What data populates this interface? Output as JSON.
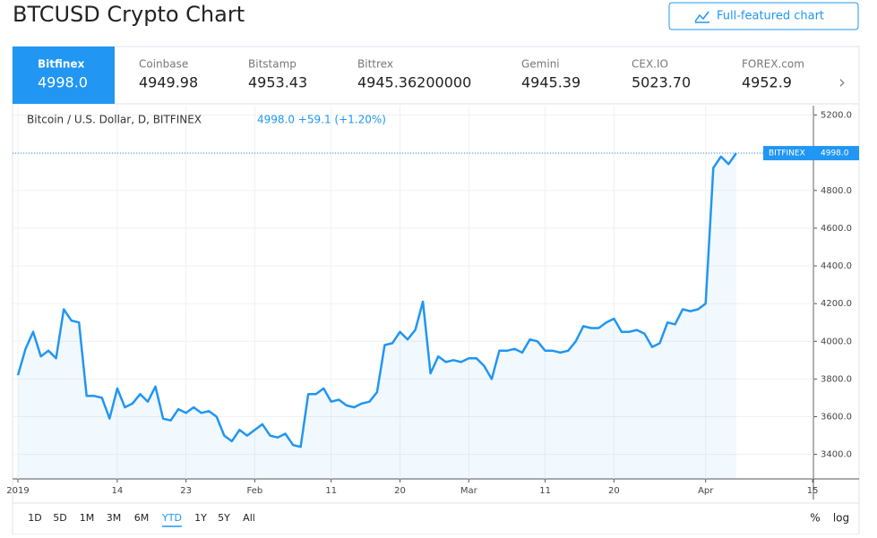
{
  "header": {
    "title": "BTCUSD Crypto Chart",
    "button": "Full-featured chart"
  },
  "tabs": [
    {
      "name": "Bitfinex",
      "price": "4998.0"
    },
    {
      "name": "Coinbase",
      "price": "4949.98"
    },
    {
      "name": "Bitstamp",
      "price": "4953.43"
    },
    {
      "name": "Bittrex",
      "price": "4945.36200000"
    },
    {
      "name": "Gemini",
      "price": "4945.39"
    },
    {
      "name": "CEX.IO",
      "price": "5023.70"
    },
    {
      "name": "FOREX.com",
      "price": "4952.9"
    }
  ],
  "chart_data": {
    "type": "line",
    "title": "Bitcoin / U.S. Dollar, D, BITFINEX",
    "quote": "4998.0  +59.1 (+1.20%)",
    "color": "#2196f3",
    "x": [
      1,
      2,
      3,
      4,
      5,
      6,
      7,
      8,
      9,
      10,
      11,
      12,
      13,
      14,
      15,
      16,
      17,
      18,
      19,
      20,
      21,
      22,
      23,
      24,
      25,
      26,
      27,
      28,
      29,
      30,
      31,
      32,
      33,
      34,
      35,
      36,
      37,
      38,
      39,
      40,
      41,
      42,
      43,
      44,
      45,
      46,
      47,
      48,
      49,
      50,
      51,
      52,
      53,
      54,
      55,
      56,
      57,
      58,
      59,
      60,
      61,
      62,
      63,
      64,
      65,
      66,
      67,
      68,
      69,
      70,
      71,
      72,
      73,
      74,
      75,
      76,
      77,
      78,
      79,
      80,
      81,
      82,
      83,
      84,
      85,
      86,
      87,
      88,
      89,
      90,
      91,
      92,
      93,
      94,
      95
    ],
    "values": [
      3820,
      3960,
      4050,
      3920,
      3950,
      3910,
      4170,
      4110,
      4100,
      3710,
      3710,
      3700,
      3590,
      3750,
      3650,
      3670,
      3720,
      3680,
      3760,
      3590,
      3580,
      3640,
      3620,
      3650,
      3620,
      3630,
      3600,
      3500,
      3470,
      3530,
      3500,
      3530,
      3560,
      3500,
      3490,
      3510,
      3450,
      3440,
      3720,
      3720,
      3750,
      3680,
      3690,
      3660,
      3650,
      3670,
      3680,
      3730,
      3980,
      3990,
      4050,
      4010,
      4060,
      4210,
      3830,
      3920,
      3890,
      3900,
      3890,
      3910,
      3910,
      3870,
      3800,
      3950,
      3950,
      3960,
      3940,
      4010,
      4000,
      3950,
      3950,
      3940,
      3950,
      4000,
      4080,
      4070,
      4070,
      4100,
      4120,
      4050,
      4050,
      4060,
      4040,
      3970,
      3990,
      4100,
      4090,
      4170,
      4160,
      4170,
      4200,
      4920,
      4980,
      4940,
      4998
    ],
    "price_label": {
      "name": "BITFINEX",
      "value": 4998,
      "label": "4998.0"
    },
    "xlim": [
      0.3,
      105.1
    ],
    "ylim": [
      3270,
      5250
    ],
    "xticks": [
      {
        "value": 1,
        "label": "2019"
      },
      14,
      23,
      {
        "value": 32,
        "label": "Feb"
      },
      {
        "value": 42,
        "label": "11"
      },
      {
        "value": 51,
        "label": "20"
      },
      {
        "value": 60,
        "label": "Mar"
      },
      {
        "value": 70,
        "label": "11"
      },
      {
        "value": 79,
        "label": "20"
      },
      {
        "value": 91,
        "label": "Apr"
      },
      {
        "value": 105,
        "label": "15"
      }
    ],
    "yticks": [
      {
        "value": 3400,
        "label": "3400.0"
      },
      {
        "value": 3600,
        "label": "3600.0"
      },
      {
        "value": 3800,
        "label": "3800.0"
      },
      {
        "value": 4000,
        "label": "4000.0"
      },
      {
        "value": 4200,
        "label": "4200.0"
      },
      {
        "value": 4400,
        "label": "4400.0"
      },
      {
        "value": 4600,
        "label": "4600.0"
      },
      {
        "value": 4800,
        "label": "4800.0"
      },
      {
        "value": 5000,
        "label": "5000.0"
      },
      {
        "value": 5200,
        "label": "5200.0"
      }
    ],
    "grid": true
  },
  "ranges": [
    "1D",
    "5D",
    "1M",
    "3M",
    "6M",
    "YTD",
    "1Y",
    "5Y",
    "All"
  ],
  "active_range": 5,
  "scale_buttons": [
    "%",
    "log"
  ]
}
